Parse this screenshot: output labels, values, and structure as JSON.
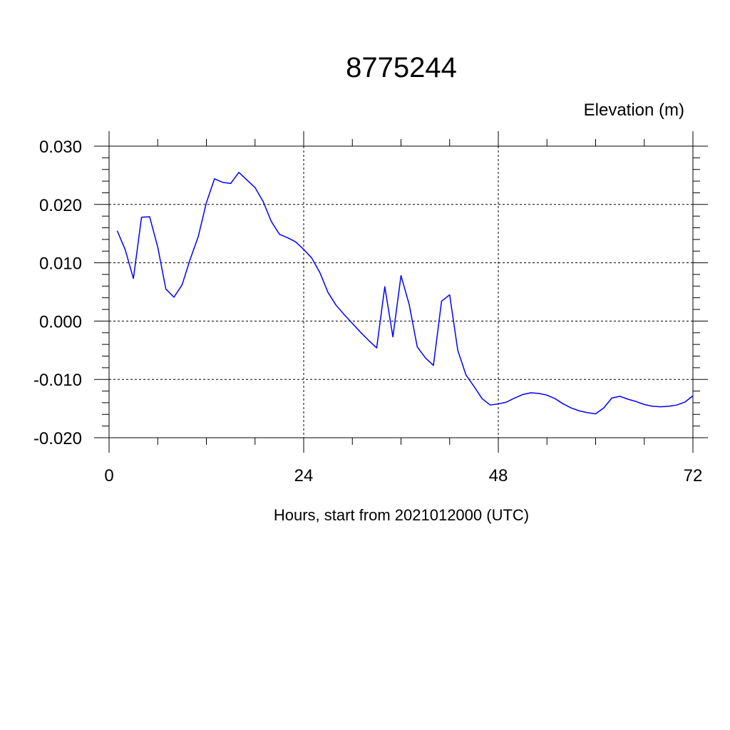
{
  "chart_data": {
    "type": "line",
    "title": "8775244",
    "ylabel": "Elevation (m)",
    "xlabel": "Hours, start from 2021012000 (UTC)",
    "xlim": [
      0,
      72
    ],
    "ylim": [
      -0.02,
      0.03
    ],
    "x_ticks": [
      0,
      24,
      48,
      72
    ],
    "x_tick_labels": [
      "0",
      "24",
      "48",
      "72"
    ],
    "y_ticks": [
      -0.02,
      -0.01,
      0.0,
      0.01,
      0.02,
      0.03
    ],
    "y_tick_labels": [
      "-0.020",
      "-0.010",
      "0.000",
      "0.010",
      "0.020",
      "0.030"
    ],
    "grid": true,
    "series": [
      {
        "color": "#0000ff",
        "x": [
          1,
          2,
          3,
          4,
          5,
          6,
          7,
          8,
          9,
          10,
          11,
          12,
          13,
          14,
          15,
          16,
          17,
          18,
          19,
          20,
          21,
          22,
          23,
          24,
          25,
          26,
          27,
          28,
          29,
          30,
          31,
          32,
          33,
          34,
          35,
          36,
          37,
          38,
          39,
          40,
          41,
          42,
          43,
          44,
          45,
          46,
          47,
          48,
          49,
          50,
          51,
          52,
          53,
          54,
          55,
          56,
          57,
          58,
          59,
          60,
          61,
          62,
          63,
          64,
          65,
          66,
          67,
          68,
          69,
          70,
          71,
          72
        ],
        "values": [
          0.0155,
          0.0122,
          0.0073,
          0.0178,
          0.0179,
          0.0127,
          0.0055,
          0.0041,
          0.0062,
          0.0106,
          0.0145,
          0.0203,
          0.0244,
          0.0238,
          0.0236,
          0.0255,
          0.0242,
          0.0229,
          0.0205,
          0.0171,
          0.0149,
          0.0143,
          0.0136,
          0.0123,
          0.0108,
          0.0083,
          0.0049,
          0.0027,
          0.0011,
          -0.0004,
          -0.0019,
          -0.0033,
          -0.0046,
          0.0059,
          -0.0027,
          0.0078,
          0.0029,
          -0.0044,
          -0.0063,
          -0.0076,
          0.0034,
          0.0045,
          -0.005,
          -0.0092,
          -0.0112,
          -0.0133,
          -0.0144,
          -0.0142,
          -0.0139,
          -0.0132,
          -0.0126,
          -0.0123,
          -0.0124,
          -0.0127,
          -0.0133,
          -0.0142,
          -0.0149,
          -0.0154,
          -0.0157,
          -0.0159,
          -0.0149,
          -0.0132,
          -0.0129,
          -0.0134,
          -0.0138,
          -0.0143,
          -0.0146,
          -0.0147,
          -0.0146,
          -0.0144,
          -0.0139,
          -0.0128
        ]
      }
    ]
  }
}
